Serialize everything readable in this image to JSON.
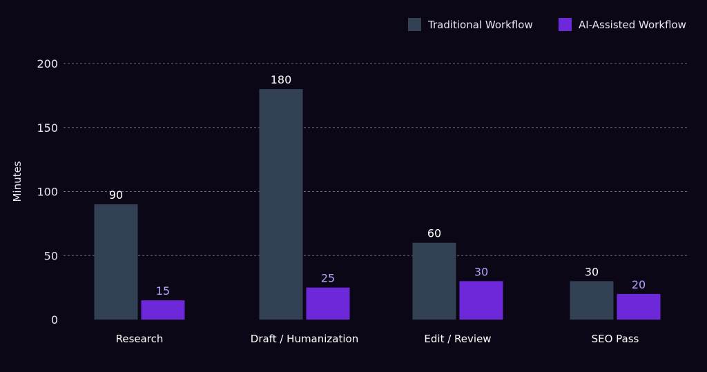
{
  "chart_data": {
    "type": "bar",
    "title": "",
    "xlabel": "",
    "ylabel": "Minutes",
    "ylim": [
      0,
      200
    ],
    "yticks": [
      0,
      50,
      100,
      150,
      200
    ],
    "grid": true,
    "legend_position": "top-right",
    "categories": [
      "Research",
      "Draft  / Humanization",
      "Edit / Review",
      "SEO Pass"
    ],
    "series": [
      {
        "name": "Traditional Workflow",
        "color": "#334155",
        "label_color": "#ffffff",
        "values": [
          90,
          180,
          60,
          30
        ]
      },
      {
        "name": "AI-Assisted Workflow",
        "color": "#6d28d9",
        "label_color": "#b9a3ff",
        "values": [
          15,
          25,
          30,
          20
        ]
      }
    ]
  }
}
